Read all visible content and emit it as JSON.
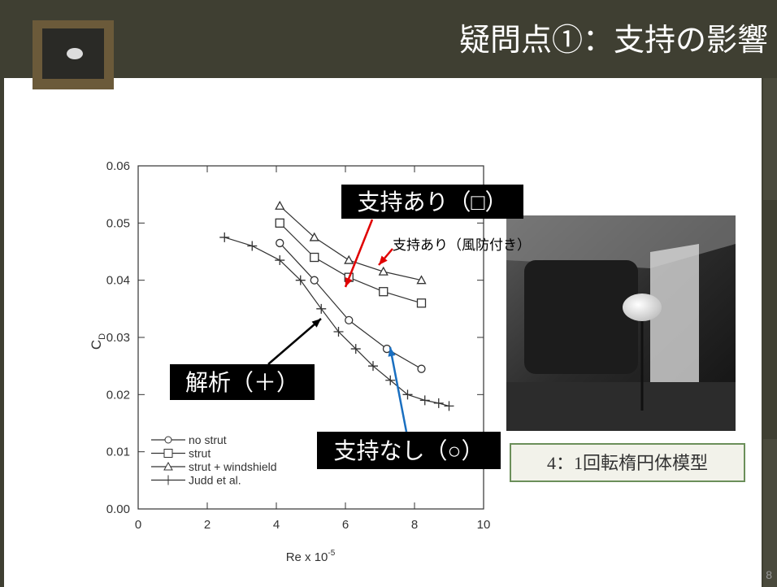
{
  "slide": {
    "title": "疑問点①：支持の影響",
    "page_number": "8",
    "caption": "4：1回転楕円体模型",
    "annotations": [
      "支持あり（□）",
      "支持あり（風防付き）",
      "解析（＋）",
      "支持なし（○）"
    ]
  },
  "chart_data": {
    "type": "line",
    "x_label": "Re x 10",
    "x_label_exponent": "-5",
    "y_label": "C",
    "y_label_subscript": "D",
    "xlim": [
      0,
      10
    ],
    "xticks": [
      0,
      2,
      4,
      6,
      8,
      10
    ],
    "ylim": [
      0,
      0.06
    ],
    "yticks": [
      {
        "value": 0,
        "label": "0.00"
      },
      0.01,
      0.02,
      0.03,
      0.04,
      0.05,
      0.06
    ],
    "legend": "lower left",
    "series": [
      {
        "name": "no strut",
        "marker": "circle",
        "color": "#333333",
        "x": [
          4.1,
          5.1,
          6.1,
          7.2,
          8.2
        ],
        "values": [
          0.0465,
          0.04,
          0.033,
          0.028,
          0.0245
        ]
      },
      {
        "name": "strut",
        "marker": "square",
        "color": "#333333",
        "x": [
          4.1,
          5.1,
          6.1,
          7.1,
          8.2
        ],
        "values": [
          0.05,
          0.044,
          0.0405,
          0.038,
          0.036
        ]
      },
      {
        "name": "strut + windshield",
        "marker": "triangle",
        "color": "#333333",
        "x": [
          4.1,
          5.1,
          6.1,
          7.1,
          8.2
        ],
        "values": [
          0.053,
          0.0475,
          0.0435,
          0.0415,
          0.04
        ]
      },
      {
        "name": "Judd et al.",
        "marker": "plus",
        "color": "#333333",
        "x": [
          2.5,
          3.3,
          4.1,
          4.7,
          5.3,
          5.8,
          6.3,
          6.8,
          7.3,
          7.8,
          8.3,
          8.7,
          9.0
        ],
        "values": [
          0.0475,
          0.046,
          0.0435,
          0.04,
          0.035,
          0.031,
          0.028,
          0.025,
          0.0225,
          0.02,
          0.019,
          0.0185,
          0.018
        ]
      }
    ]
  }
}
